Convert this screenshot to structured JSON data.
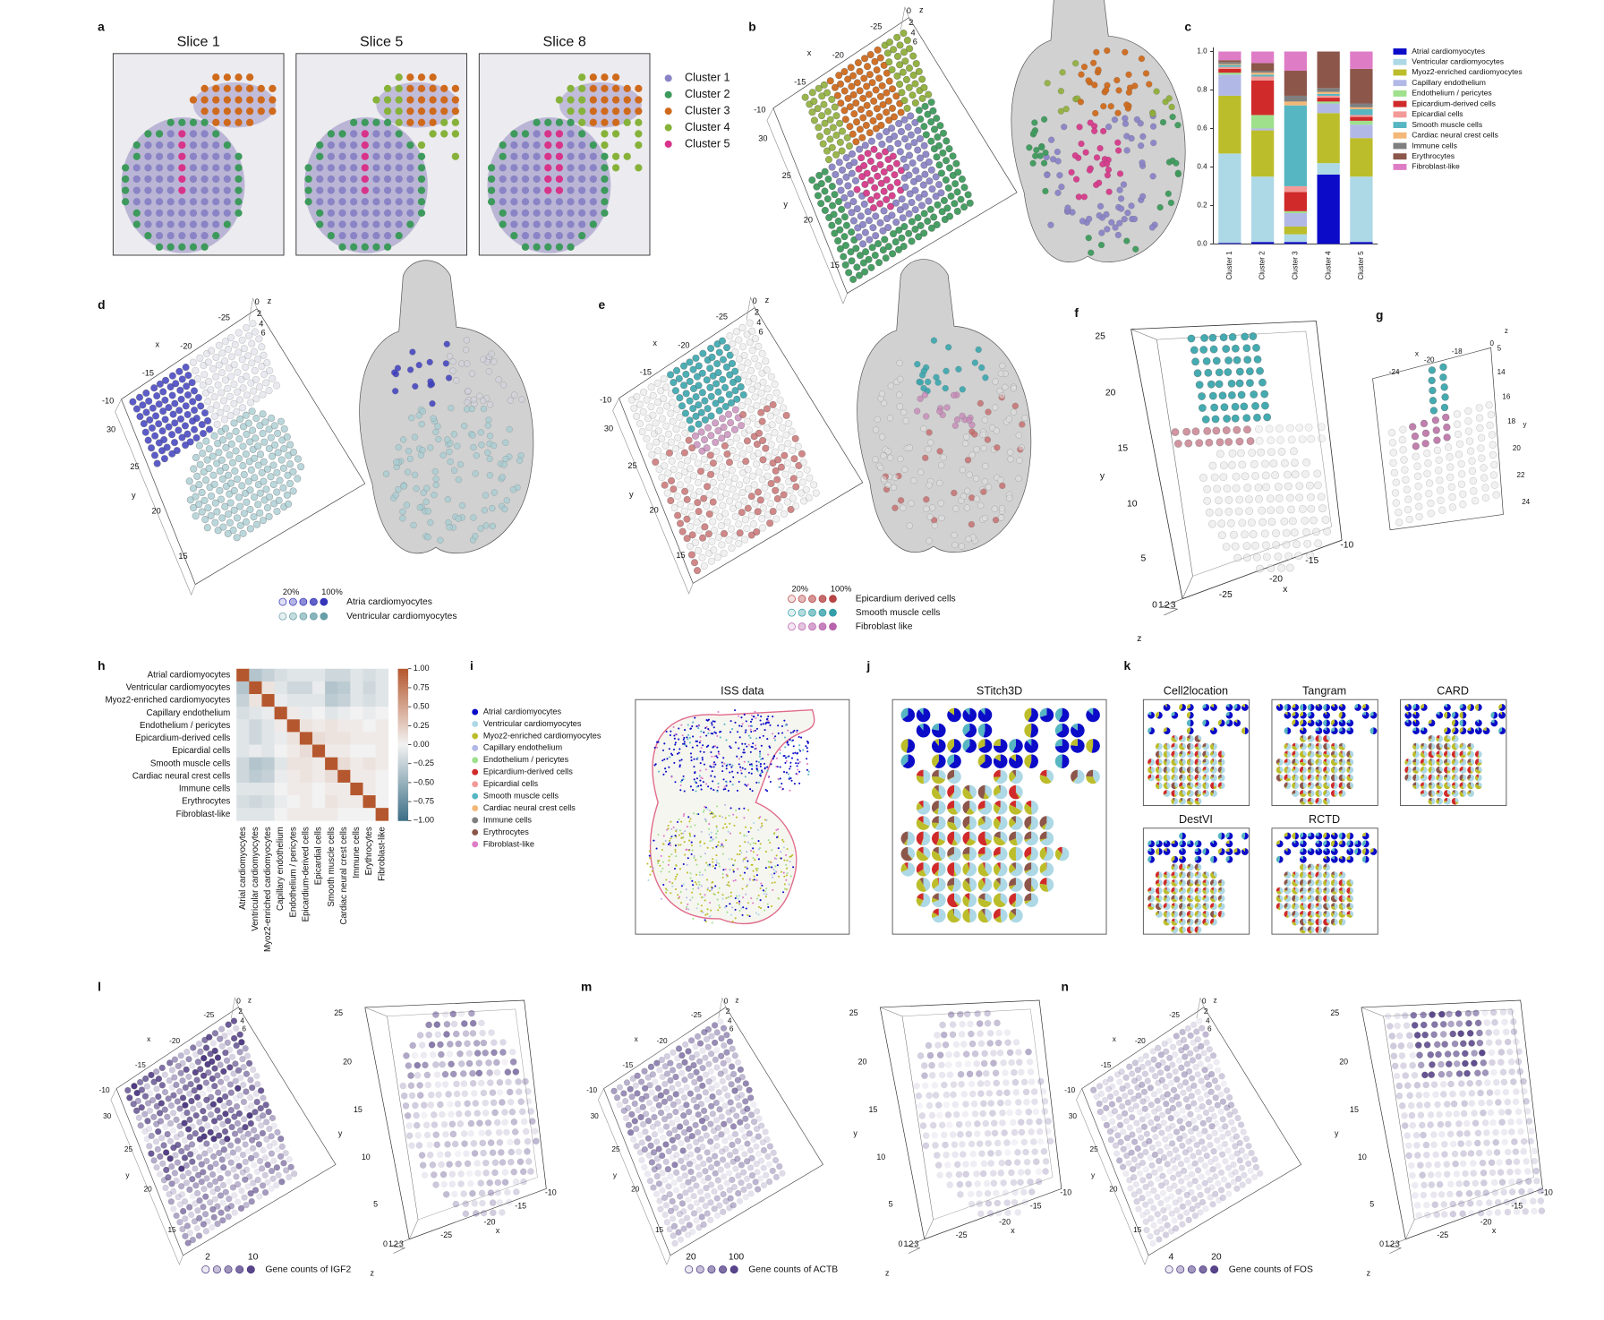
{
  "panel_labels": [
    "a",
    "b",
    "c",
    "d",
    "e",
    "f",
    "g",
    "h",
    "i",
    "j",
    "k",
    "l",
    "m",
    "n"
  ],
  "chart_data": [
    {
      "type": "bar",
      "stacked": true,
      "categories": [
        "Cluster 1",
        "Cluster 2",
        "Cluster 3",
        "Cluster 4",
        "Cluster 5"
      ],
      "series": [
        {
          "name": "Atrial cardiomyocytes",
          "color": "#0b0bc8",
          "values": [
            0.005,
            0.01,
            0.01,
            0.36,
            0.01
          ]
        },
        {
          "name": "Ventricular cardiomyocytes",
          "color": "#add8e6",
          "values": [
            0.465,
            0.34,
            0.04,
            0.06,
            0.34
          ]
        },
        {
          "name": "Myoz2-enriched cardiomyocytes",
          "color": "#bcbd2a",
          "values": [
            0.3,
            0.24,
            0.04,
            0.26,
            0.2
          ]
        },
        {
          "name": "Capillary endothelium",
          "color": "#b2b8e6",
          "values": [
            0.11,
            0.01,
            0.07,
            0.05,
            0.07
          ]
        },
        {
          "name": "Endothelium / pericytes",
          "color": "#9ee08c",
          "values": [
            0.01,
            0.07,
            0.01,
            0.01,
            0.02
          ]
        },
        {
          "name": "Epicardium-derived cells",
          "color": "#d02a2a",
          "values": [
            0.02,
            0.18,
            0.1,
            0.02,
            0.02
          ]
        },
        {
          "name": "Epicardial cells",
          "color": "#f39a98",
          "values": [
            0.01,
            0.02,
            0.03,
            0.01,
            0.01
          ]
        },
        {
          "name": "Smooth muscle cells",
          "color": "#56b6c2",
          "values": [
            0.01,
            0.01,
            0.42,
            0.01,
            0.03
          ]
        },
        {
          "name": "Cardiac neural crest cells",
          "color": "#f3b878",
          "values": [
            0.005,
            0.01,
            0.02,
            0.01,
            0.01
          ]
        },
        {
          "name": "Immune cells",
          "color": "#7f7f7f",
          "values": [
            0.01,
            0.01,
            0.03,
            0.02,
            0.02
          ]
        },
        {
          "name": "Erythrocytes",
          "color": "#8c564b",
          "values": [
            0.01,
            0.04,
            0.13,
            0.19,
            0.18
          ]
        },
        {
          "name": "Fibroblast-like",
          "color": "#df7cc6",
          "values": [
            0.045,
            0.06,
            0.1,
            0,
            0.09
          ]
        }
      ],
      "ylim": [
        0,
        1
      ],
      "yticks": [
        {
          "value": 0,
          "label": "0.0"
        },
        0.2,
        0.4,
        0.6,
        0.8,
        {
          "value": 1,
          "label": "1.0"
        }
      ]
    },
    {
      "type": "heatmap",
      "categories": [
        "Atrial cardiomyocytes",
        "Ventricular cardiomyocytes",
        "Myoz2-enriched cardiomyocytes",
        "Capillary endothelium",
        "Endothelium / pericytes",
        "Epicardium-derived cells",
        "Epicardial cells",
        "Smooth muscle cells",
        "Cardiac neural crest cells",
        "Immune cells",
        "Erythrocytes",
        "Fibroblast-like"
      ],
      "values": [
        [
          1,
          -0.35,
          -0.25,
          -0.15,
          -0.1,
          -0.1,
          -0.1,
          -0.2,
          -0.2,
          -0.1,
          -0.15,
          -0.1
        ],
        [
          -0.35,
          1,
          0.1,
          -0.1,
          -0.2,
          -0.2,
          -0.05,
          -0.35,
          -0.3,
          -0.1,
          -0.2,
          -0.1
        ],
        [
          -0.25,
          0.1,
          1,
          -0.05,
          -0.1,
          -0.1,
          -0.1,
          -0.3,
          -0.25,
          -0.1,
          -0.15,
          -0.1
        ],
        [
          -0.15,
          -0.1,
          -0.05,
          1,
          0.05,
          -0.05,
          0,
          -0.1,
          -0.05,
          0,
          -0.05,
          0
        ],
        [
          -0.1,
          -0.2,
          -0.1,
          0.05,
          1,
          0.1,
          0.05,
          0.1,
          0.05,
          0.05,
          0,
          0.05
        ],
        [
          -0.1,
          -0.2,
          -0.1,
          -0.05,
          0.1,
          1,
          0.15,
          0.1,
          0.1,
          0.05,
          0.05,
          0.05
        ],
        [
          -0.1,
          -0.05,
          -0.1,
          0,
          0.05,
          0.15,
          1,
          0.05,
          0.05,
          0,
          0,
          0.05
        ],
        [
          -0.2,
          -0.35,
          -0.3,
          -0.1,
          0.1,
          0.1,
          0.05,
          1,
          0.15,
          0.05,
          0.1,
          0.05
        ],
        [
          -0.2,
          -0.3,
          -0.25,
          -0.05,
          0.05,
          0.1,
          0.05,
          0.15,
          1,
          0.05,
          0.05,
          0
        ],
        [
          -0.1,
          -0.1,
          -0.1,
          0,
          0.05,
          0.05,
          0,
          0.05,
          0.05,
          1,
          0.05,
          0
        ],
        [
          -0.15,
          -0.2,
          -0.15,
          -0.05,
          0,
          0.05,
          0,
          0.1,
          0.05,
          0.05,
          1,
          0
        ],
        [
          -0.1,
          -0.1,
          -0.1,
          0,
          0.05,
          0.05,
          0.05,
          0.05,
          0,
          0,
          0,
          1
        ]
      ],
      "clim": [
        -1,
        1
      ],
      "colorbar_ticks": [
        {
          "value": 1,
          "label": "1.00"
        },
        {
          "value": 0.75,
          "label": "0.75"
        },
        {
          "value": 0.5,
          "label": "0.50"
        },
        {
          "value": 0.25,
          "label": "0.25"
        },
        {
          "value": 0,
          "label": "0.00"
        },
        {
          "value": -0.25,
          "label": "−0.25"
        },
        {
          "value": -0.5,
          "label": "−0.50"
        },
        {
          "value": -0.75,
          "label": "−0.75"
        },
        {
          "value": -1,
          "label": "−1.00"
        }
      ]
    }
  ],
  "panels": {
    "a": {
      "slices": [
        "Slice 1",
        "Slice 5",
        "Slice 8"
      ],
      "clusters": [
        {
          "name": "Cluster 1",
          "color": "#8a84c6"
        },
        {
          "name": "Cluster 2",
          "color": "#3d9a5c"
        },
        {
          "name": "Cluster 3",
          "color": "#cf6a1c"
        },
        {
          "name": "Cluster 4",
          "color": "#86b23a"
        },
        {
          "name": "Cluster 5",
          "color": "#d8338a"
        }
      ]
    },
    "b": {
      "axis_labels": [
        0,
        2,
        4,
        6,
        "z",
        -25,
        -20,
        -15,
        -10,
        "x",
        30,
        25,
        20,
        15,
        "y"
      ]
    },
    "d": {
      "axis_labels": [
        0,
        2,
        4,
        6,
        "z",
        -25,
        -20,
        -15,
        -10,
        "x",
        30,
        25,
        20,
        15,
        "y"
      ],
      "legend": {
        "scale_labels": [
          "20%",
          "100%"
        ],
        "entries": [
          {
            "name": "Atria cardiomyocytes",
            "color": "#2b2bb5"
          },
          {
            "name": "Ventricular cardiomyocytes",
            "color": "#5f9aa3"
          }
        ]
      }
    },
    "e": {
      "axis_labels": [
        0,
        2,
        4,
        6,
        "z",
        -25,
        -20,
        -15,
        -10,
        "x",
        30,
        25,
        20,
        15,
        "y"
      ],
      "legend": {
        "scale_labels": [
          "20%",
          "100%"
        ],
        "entries": [
          {
            "name": "Epicardium derived cells",
            "color": "#b23a3a"
          },
          {
            "name": "Smooth muscle cells",
            "color": "#2a9aa3"
          },
          {
            "name": "Fibroblast like",
            "color": "#b45aa8"
          }
        ]
      }
    },
    "f": {
      "axis_labels": [
        25,
        20,
        15,
        10,
        5,
        "y",
        -10,
        -15,
        -20,
        -25,
        "x",
        0,
        1,
        2,
        3,
        "z"
      ]
    },
    "g": {
      "axis_labels": [
        "z",
        0,
        5,
        "x",
        -24,
        -20,
        -18,
        14,
        16,
        "y",
        18,
        20,
        22,
        24
      ]
    },
    "i": {
      "title": "ISS data",
      "legend": [
        {
          "name": "Atrial cardiomyocytes",
          "color": "#0b0bc8"
        },
        {
          "name": "Ventricular cardiomyocytes",
          "color": "#add8e6"
        },
        {
          "name": "Myoz2-enriched cardiomyocytes",
          "color": "#bcbd2a"
        },
        {
          "name": "Capillary endothelium",
          "color": "#b2b8e6"
        },
        {
          "name": "Endothelium / pericytes",
          "color": "#9ee08c"
        },
        {
          "name": "Epicardium-derived cells",
          "color": "#d02a2a"
        },
        {
          "name": "Epicardial cells",
          "color": "#f39a98"
        },
        {
          "name": "Smooth muscle cells",
          "color": "#56b6c2"
        },
        {
          "name": "Cardiac neural crest cells",
          "color": "#f3b878"
        },
        {
          "name": "Immune cells",
          "color": "#7f7f7f"
        },
        {
          "name": "Erythrocytes",
          "color": "#8c564b"
        },
        {
          "name": "Fibroblast-like",
          "color": "#df7cc6"
        }
      ]
    },
    "j": {
      "title": "STitch3D"
    },
    "k": {
      "titles": [
        "Cell2location",
        "Tangram",
        "CARD",
        "DestVI",
        "RCTD"
      ]
    },
    "l": {
      "left_axis_labels": [
        0,
        2,
        4,
        6,
        "z",
        -25,
        -20,
        -15,
        -10,
        "x",
        30,
        25,
        20,
        15,
        "y"
      ],
      "right_axis_labels": [
        25,
        20,
        15,
        10,
        5,
        "y",
        -10,
        -15,
        -20,
        -25,
        "x",
        0,
        1,
        2,
        3,
        "z"
      ],
      "legend": {
        "scale_labels": [
          2,
          10
        ],
        "label": "Gene counts of IGF2",
        "color": "#45307d"
      }
    },
    "m": {
      "left_axis_labels": [
        0,
        2,
        4,
        6,
        "z",
        -25,
        -20,
        -15,
        -10,
        "x",
        30,
        25,
        20,
        15,
        "y"
      ],
      "right_axis_labels": [
        25,
        20,
        15,
        10,
        5,
        "y",
        -10,
        -15,
        -20,
        -25,
        "x",
        0,
        1,
        2,
        3,
        "z"
      ],
      "legend": {
        "scale_labels": [
          20,
          100
        ],
        "label": "Gene counts of ACTB",
        "color": "#45307d"
      }
    },
    "n": {
      "left_axis_labels": [
        0,
        2,
        4,
        6,
        "z",
        -25,
        -20,
        -15,
        -10,
        "x",
        30,
        25,
        20,
        15,
        "y"
      ],
      "right_axis_labels": [
        25,
        20,
        15,
        10,
        5,
        "y",
        -10,
        -15,
        -20,
        -25,
        "x",
        0,
        1,
        2,
        3,
        "z"
      ],
      "legend": {
        "scale_labels": [
          4,
          20
        ],
        "label": "Gene counts of FOS",
        "color": "#45307d"
      }
    }
  }
}
